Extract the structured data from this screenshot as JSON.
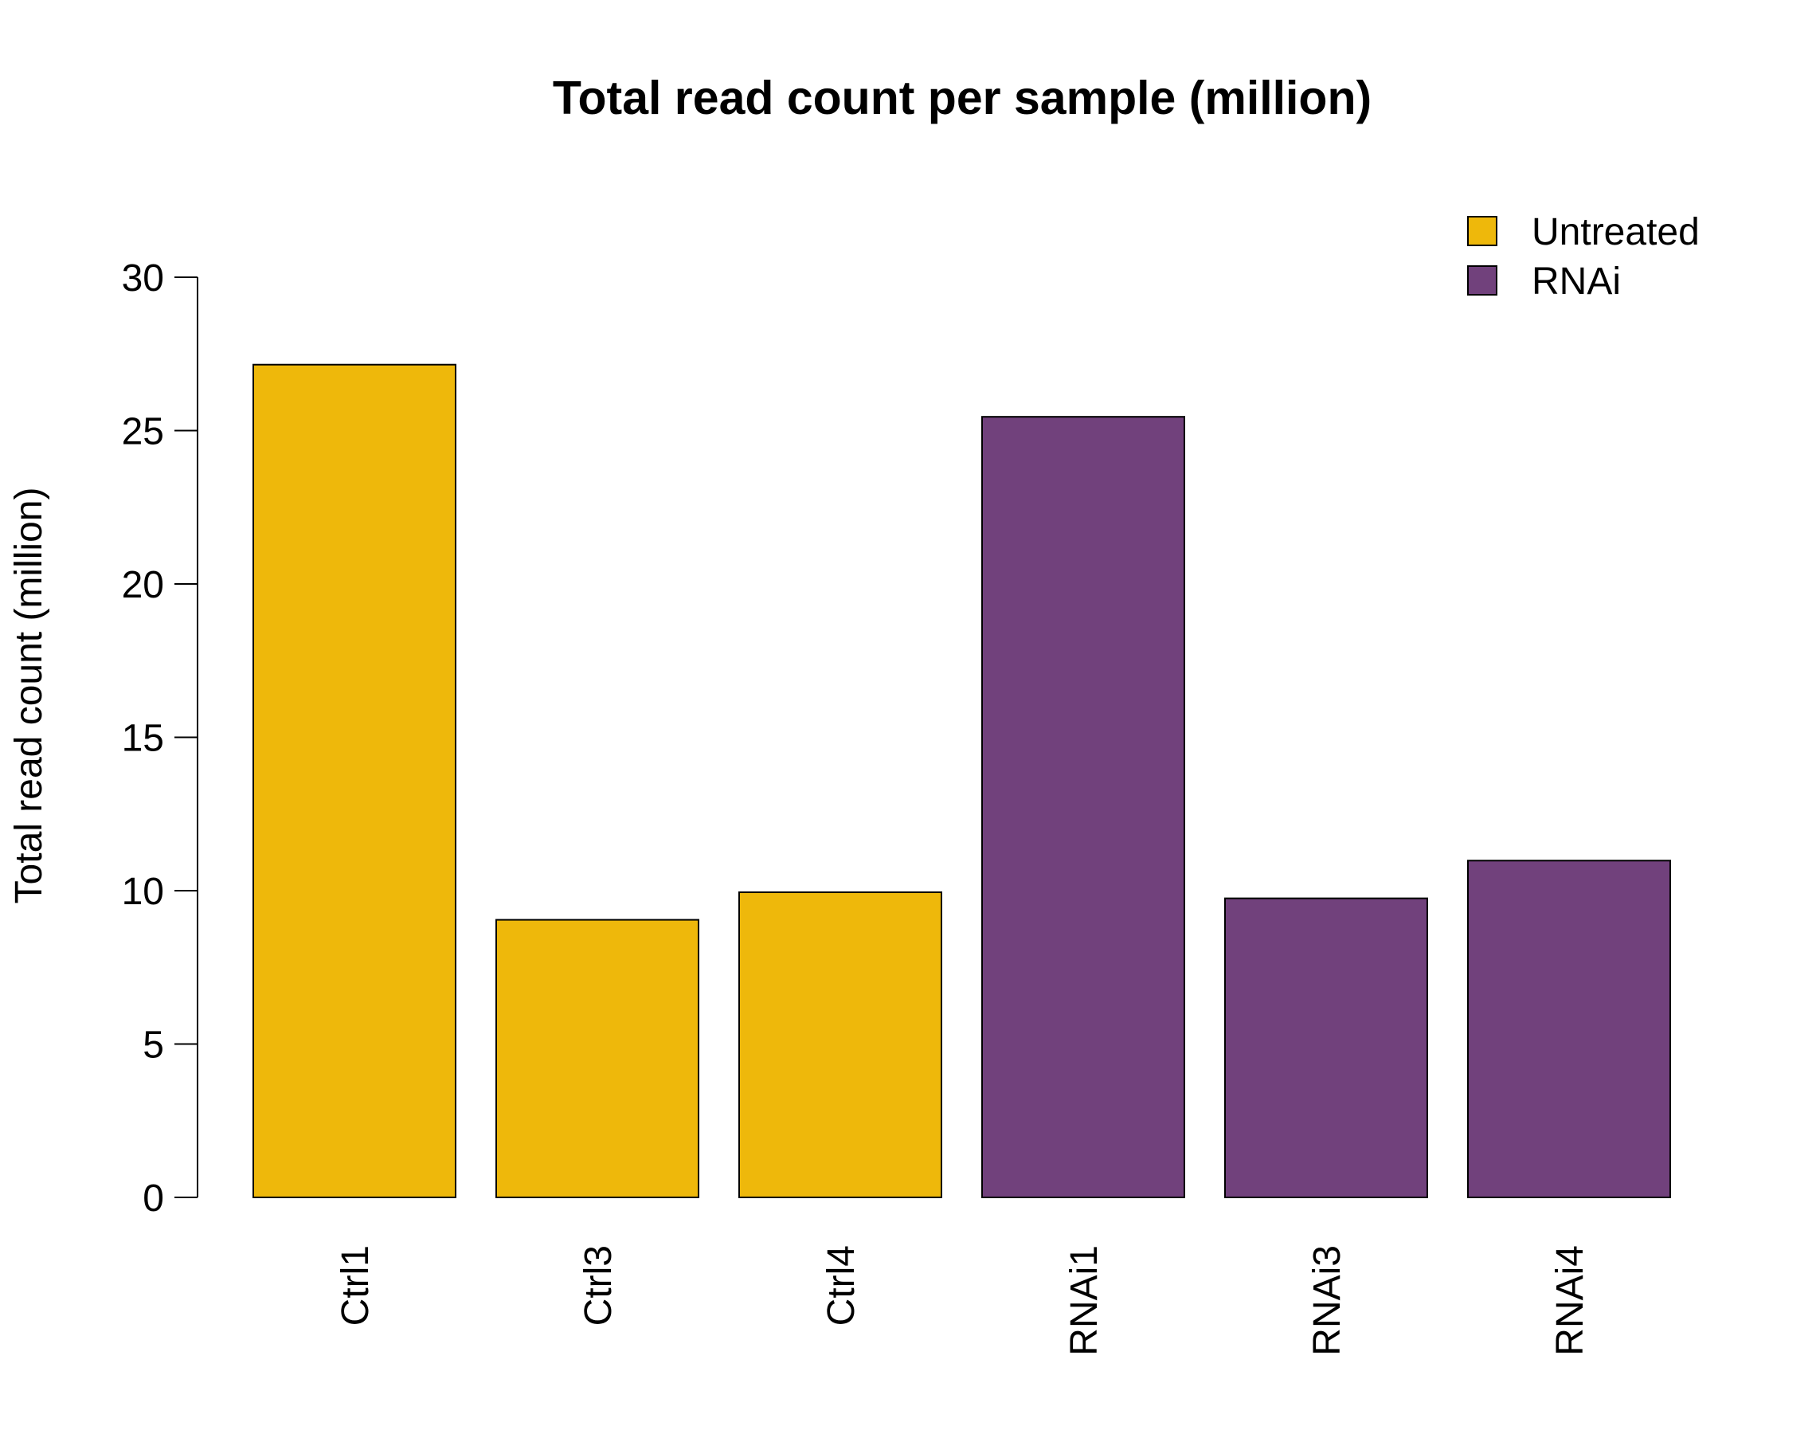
{
  "chart_data": {
    "type": "bar",
    "title": "Total read count per sample (million)",
    "xlabel": "",
    "ylabel": "Total read count (million)",
    "ylim": [
      0,
      30
    ],
    "yticks": [
      0,
      5,
      10,
      15,
      20,
      25,
      30
    ],
    "categories": [
      "Ctrl1",
      "Ctrl3",
      "Ctrl4",
      "RNAi1",
      "RNAi3",
      "RNAi4"
    ],
    "values": [
      27.15,
      9.05,
      9.95,
      25.45,
      9.75,
      10.98
    ],
    "bar_groups": [
      "Untreated",
      "Untreated",
      "Untreated",
      "RNAi",
      "RNAi",
      "RNAi"
    ],
    "legend": {
      "placement": "top-right",
      "entries": [
        {
          "label": "Untreated",
          "color": "#EEB80B"
        },
        {
          "label": "RNAi",
          "color": "#71417C"
        }
      ]
    },
    "grid": false
  }
}
